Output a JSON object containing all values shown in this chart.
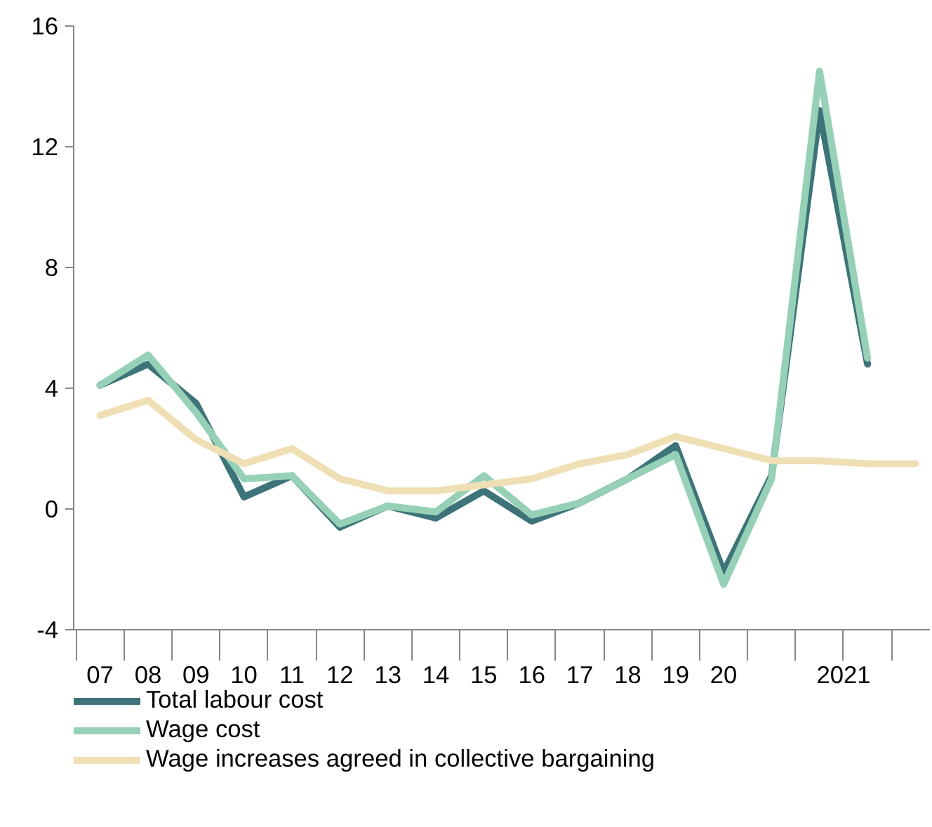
{
  "chart_data": {
    "type": "line",
    "categories": [
      "07",
      "08",
      "09",
      "10",
      "11",
      "12",
      "13",
      "14",
      "15",
      "16",
      "17",
      "18",
      "19",
      "20",
      null,
      null,
      null,
      null
    ],
    "series": [
      {
        "name": "Total labour cost",
        "color": "#3d7479",
        "values": [
          4.1,
          4.8,
          3.5,
          0.4,
          1.1,
          -0.6,
          0.1,
          -0.3,
          0.6,
          -0.4,
          0.2,
          1.0,
          2.1,
          -2.1,
          1.1,
          13.2,
          4.8,
          null
        ]
      },
      {
        "name": "Wage cost",
        "color": "#96d1b7",
        "values": [
          4.1,
          5.1,
          3.2,
          1.0,
          1.1,
          -0.5,
          0.1,
          -0.1,
          1.1,
          -0.2,
          0.2,
          1.0,
          1.8,
          -2.5,
          1.0,
          14.5,
          5.0,
          null
        ]
      },
      {
        "name": "Wage increases agreed in collective bargaining",
        "color": "#efdfb5",
        "values": [
          3.1,
          3.6,
          2.3,
          1.5,
          2.0,
          1.0,
          0.6,
          0.6,
          0.8,
          1.0,
          1.5,
          1.8,
          2.4,
          2.0,
          1.6,
          1.6,
          1.5,
          1.5
        ]
      }
    ],
    "annotations": [
      "2021"
    ],
    "ylim": [
      -4,
      16
    ],
    "yticks": [
      -4,
      0,
      4,
      8,
      12,
      16
    ],
    "grid": false,
    "legend": "bottom",
    "marker": "none",
    "line_style": "solid"
  }
}
